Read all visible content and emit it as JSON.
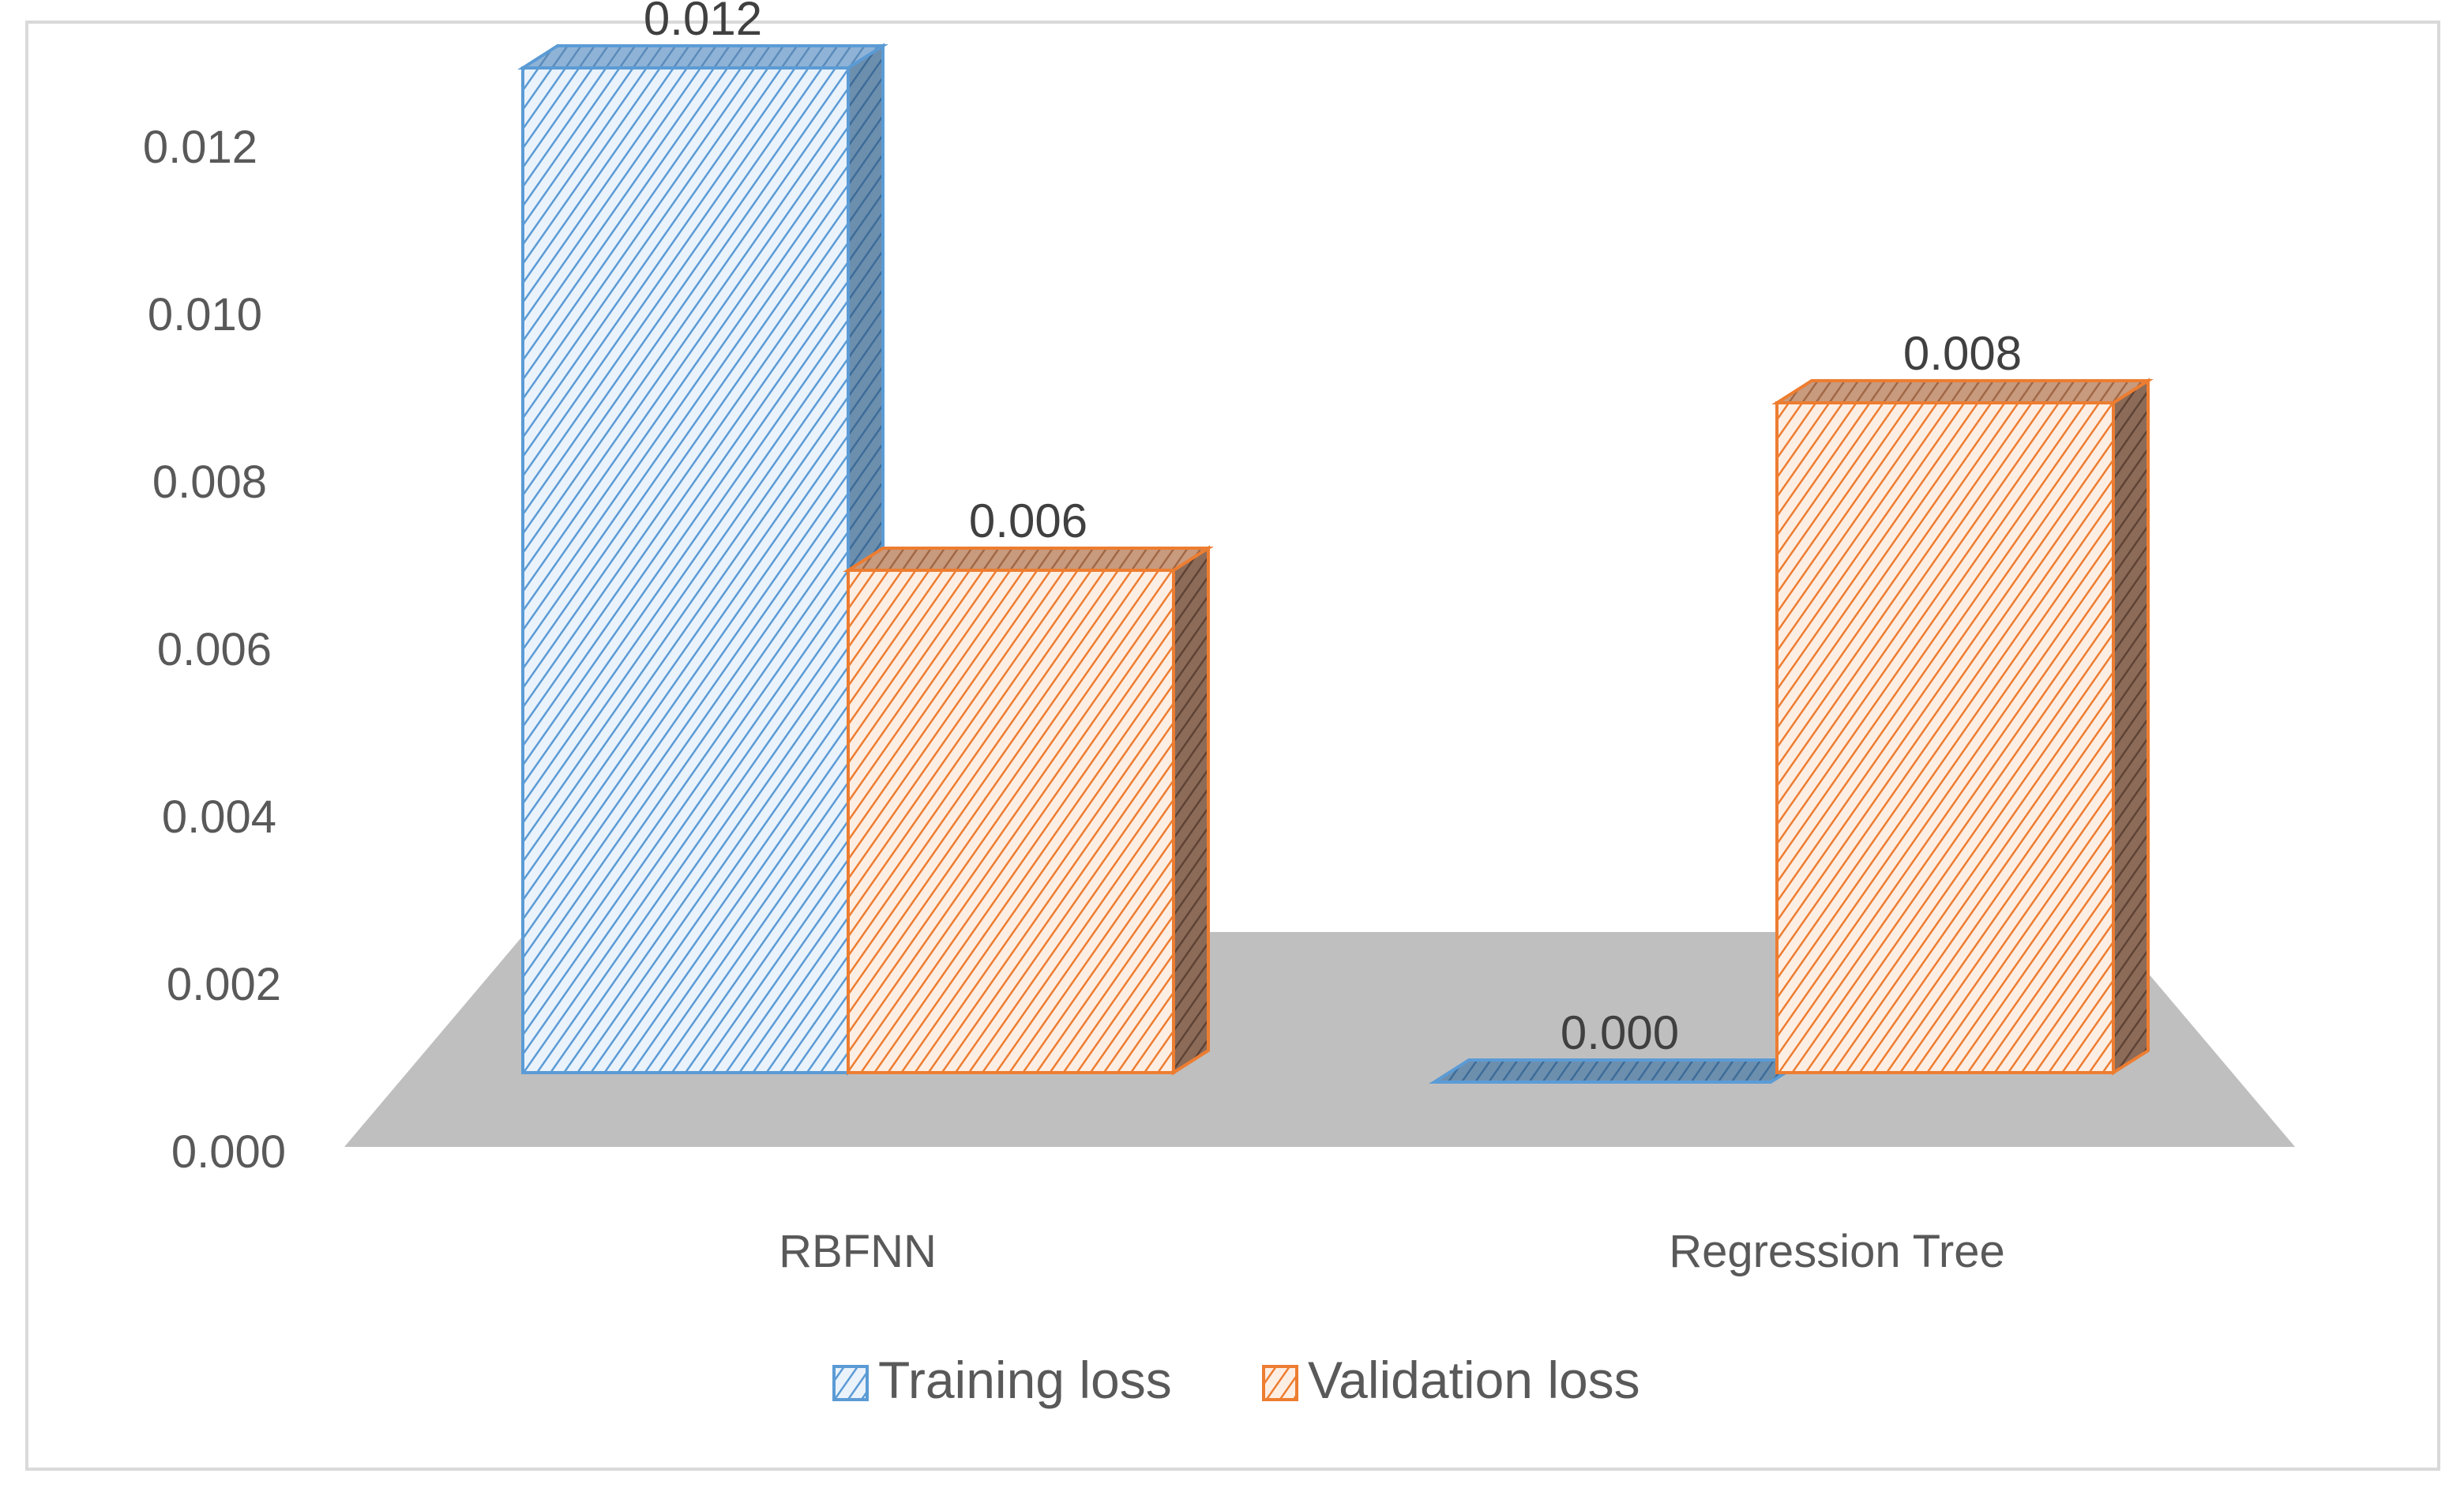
{
  "chart_data": {
    "type": "bar",
    "style": "3d-clustered-column",
    "categories": [
      "RBFNN",
      "Regression Tree"
    ],
    "series": [
      {
        "name": "Training loss",
        "values": [
          0.012,
          0.0
        ],
        "labels": [
          "0.012",
          "0.000"
        ],
        "color": "#5b9bd5",
        "dark": "#4478a8"
      },
      {
        "name": "Validation loss",
        "values": [
          0.006,
          0.008
        ],
        "labels": [
          "0.006",
          "0.008"
        ],
        "color": "#ed7d31",
        "dark": "#b05e26"
      }
    ],
    "yticks": [
      "0.000",
      "0.002",
      "0.004",
      "0.006",
      "0.008",
      "0.010",
      "0.012"
    ],
    "ylim": [
      0,
      0.012
    ],
    "title": "",
    "xlabel": "",
    "ylabel": "",
    "legend": "bottom",
    "floor_color": "#c0c0c0"
  }
}
